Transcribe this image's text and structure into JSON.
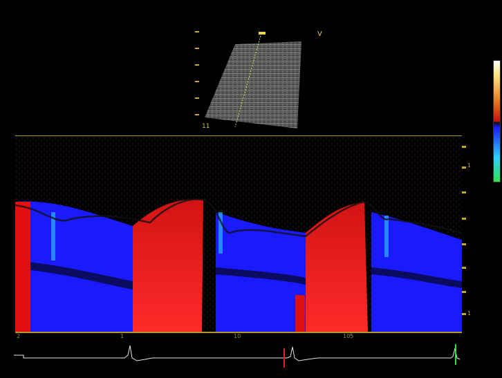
{
  "sector_view": {
    "orientation_marker": "V",
    "depth_label": "11"
  },
  "mmode": {
    "time_labels": [
      "2",
      "1",
      "10",
      "105"
    ],
    "scale_labels": [
      "1",
      "1"
    ]
  },
  "colors": {
    "axis": "#b49b1f",
    "toward": "#e01010",
    "away": "#1a1aff",
    "ecg": "#e8e8e8",
    "ecg_marker_red": "#e02020",
    "ecg_marker_green": "#2ee04a"
  }
}
